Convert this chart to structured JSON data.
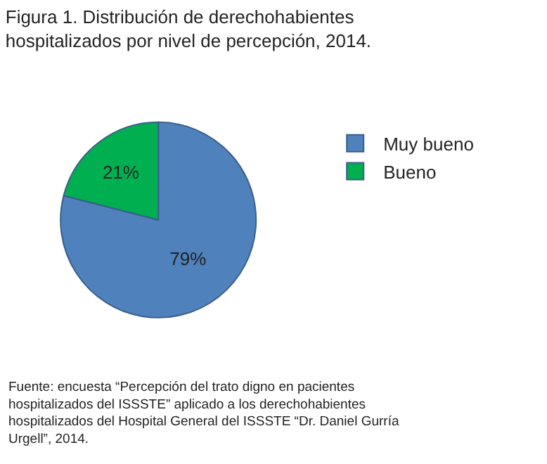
{
  "chart_data": {
    "type": "pie",
    "title": "Figura 1. Distribución de derechohabientes hospitalizados por nivel de percepción, 2014.",
    "categories": [
      "Muy bueno",
      "Bueno"
    ],
    "values": [
      79,
      21
    ],
    "colors": [
      "#4f81bd",
      "#00b050"
    ],
    "value_labels": [
      "79%",
      "21%"
    ],
    "legend": "top right",
    "annotations": [
      "Fuente: encuesta “Percepción del trato digno en pacientes hospitalizados del ISSSTE” aplicado a los derechohabientes hospitalizados del Hospital General del ISSSTE “Dr. Daniel Gurría Urgell”, 2014."
    ]
  }
}
